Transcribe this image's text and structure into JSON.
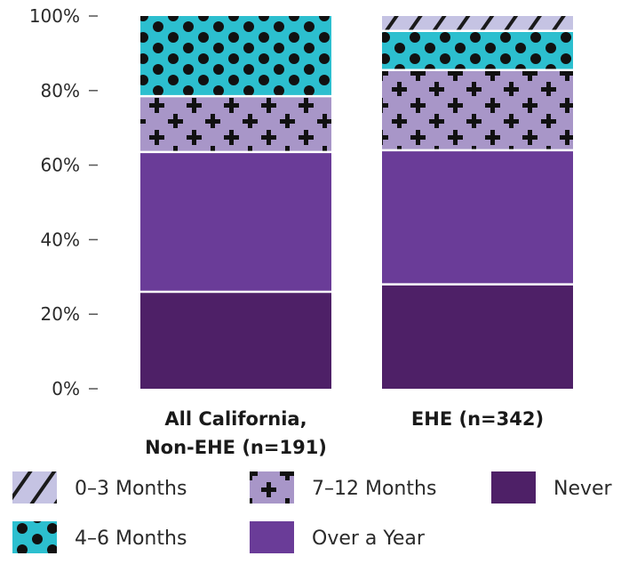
{
  "chart_data": {
    "type": "bar",
    "stacked": true,
    "categories": [
      "All California,\nNon-EHE (n=191)",
      "EHE (n=342)"
    ],
    "y_ticks": [
      "0%",
      "20%",
      "40%",
      "60%",
      "80%",
      "100%"
    ],
    "ylim": [
      0,
      100
    ],
    "grid": false,
    "legend_position": "bottom",
    "series": [
      {
        "name": "Never",
        "values": [
          26,
          28
        ],
        "color": "#4e2067",
        "pattern": "solid"
      },
      {
        "name": "Over a Year",
        "values": [
          37.5,
          36
        ],
        "color": "#6a3c98",
        "pattern": "solid"
      },
      {
        "name": "7–12 Months",
        "values": [
          15,
          21.5
        ],
        "color": "#a896c8",
        "pattern": "cross"
      },
      {
        "name": "4–6 Months",
        "values": [
          21.5,
          10.5
        ],
        "color": "#2cbfcf",
        "pattern": "dots"
      },
      {
        "name": "0–3 Months",
        "values": [
          0,
          4
        ],
        "color": "#c5c3e3",
        "pattern": "stripes"
      }
    ],
    "legend_order": [
      "0–3 Months",
      "7–12 Months",
      "Never",
      "4–6 Months",
      "Over a Year"
    ]
  }
}
